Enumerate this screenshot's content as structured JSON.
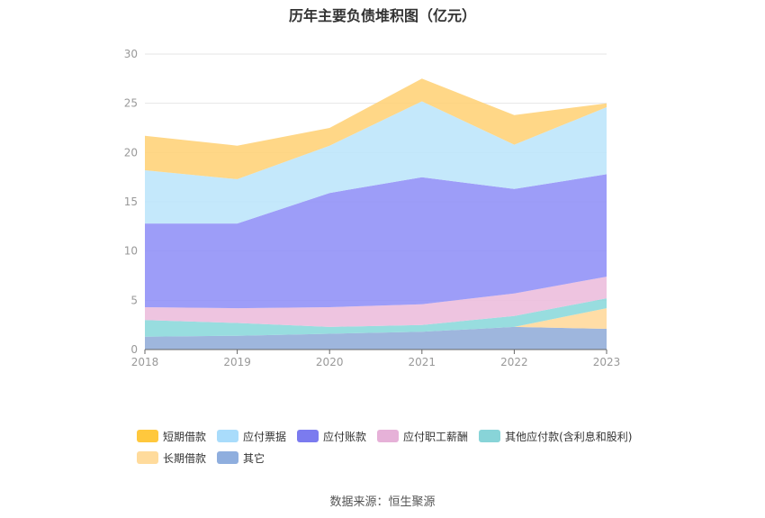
{
  "chart_data": {
    "type": "area",
    "stacked": true,
    "title": "历年主要负债堆积图（亿元）",
    "x": [
      "2018",
      "2019",
      "2020",
      "2021",
      "2022",
      "2023"
    ],
    "ylim": [
      0,
      30
    ],
    "yticks": [
      0,
      5,
      10,
      15,
      20,
      25,
      30
    ],
    "grid": true,
    "legend_position": "bottom",
    "series": [
      {
        "name": "其它",
        "color": "#91acd8",
        "values": [
          1.3,
          1.4,
          1.6,
          1.8,
          2.3,
          2.1
        ]
      },
      {
        "name": "长期借款",
        "color": "#ffd89a",
        "values": [
          0,
          0,
          0,
          0,
          0,
          2.1
        ]
      },
      {
        "name": "其他应付款(含利息和股利)",
        "color": "#8ad8db",
        "values": [
          1.7,
          1.3,
          0.7,
          0.7,
          1.1,
          1.0
        ]
      },
      {
        "name": "应付职工薪酬",
        "color": "#ecbcdc",
        "values": [
          1.3,
          1.5,
          2.0,
          2.1,
          2.3,
          2.2
        ]
      },
      {
        "name": "应付账款",
        "color": "#8f8ff7",
        "values": [
          8.5,
          8.6,
          11.6,
          12.9,
          10.6,
          10.4
        ]
      },
      {
        "name": "应付票据",
        "color": "#bce5fb",
        "values": [
          5.4,
          4.5,
          4.8,
          7.7,
          4.5,
          6.8
        ]
      },
      {
        "name": "短期借款",
        "color": "#ffd276",
        "values": [
          3.5,
          3.4,
          1.8,
          2.3,
          3.0,
          0.4
        ]
      }
    ],
    "legend": [
      {
        "label": "短期借款",
        "color": "#ffc83d"
      },
      {
        "label": "应付票据",
        "color": "#a9dcfb"
      },
      {
        "label": "应付账款",
        "color": "#7b7bef"
      },
      {
        "label": "应付职工薪酬",
        "color": "#e6b1d8"
      },
      {
        "label": "其他应付款(含利息和股利)",
        "color": "#88d4d8"
      },
      {
        "label": "长期借款",
        "color": "#ffdb9c"
      },
      {
        "label": "其它",
        "color": "#8faede"
      }
    ]
  },
  "footer": {
    "source": "数据来源：恒生聚源"
  }
}
